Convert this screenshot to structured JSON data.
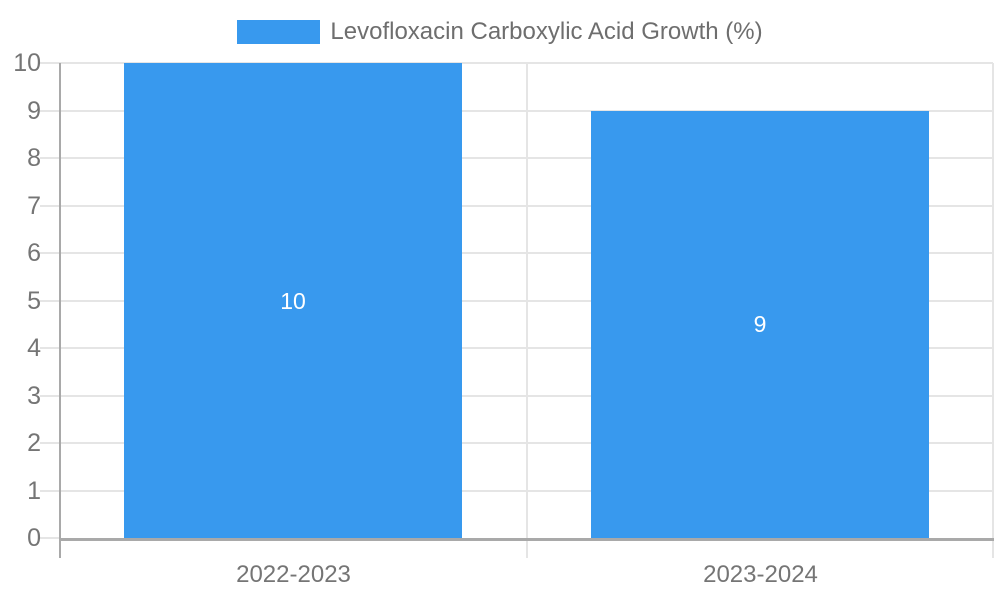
{
  "chart_data": {
    "type": "bar",
    "title": "Levofloxacin Carboxylic Acid Growth (%)",
    "legend_position": "top-center",
    "categories": [
      "2022-2023",
      "2023-2024"
    ],
    "series": [
      {
        "name": "Levofloxacin Carboxylic Acid Growth (%)",
        "values": [
          10,
          9
        ]
      }
    ],
    "data_labels": [
      "10",
      "9"
    ],
    "xlabel": "",
    "ylabel": "",
    "ylim": [
      0,
      10
    ],
    "ytick_interval": 1,
    "yticks": [
      "0",
      "1",
      "2",
      "3",
      "4",
      "5",
      "6",
      "7",
      "8",
      "9",
      "10"
    ],
    "grid": true,
    "colors": {
      "bar": "#3899EE",
      "bar_label": "#FFFFFF",
      "grid_line": "#E5E5E5",
      "axis_line": "#A9A9A9",
      "tick_label": "#757575",
      "legend_text": "#6E6E6E"
    }
  }
}
